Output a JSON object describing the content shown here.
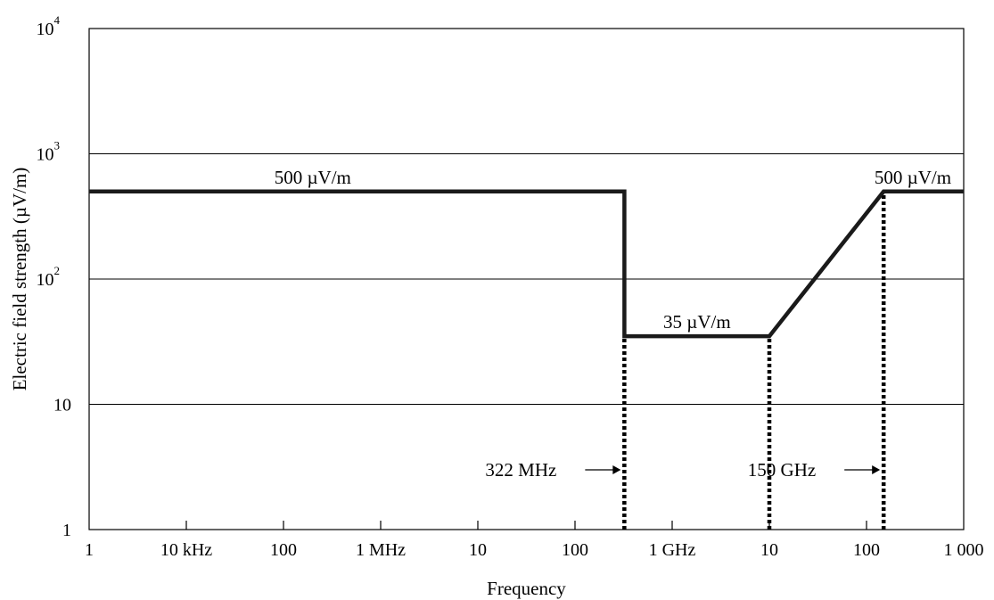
{
  "chart_data": {
    "type": "line",
    "title": "",
    "xlabel": "Frequency",
    "ylabel": "Electric field strength (µV/m)",
    "xscale": "log",
    "yscale": "log",
    "xlim_hz": [
      1000,
      1000000000000
    ],
    "ylim": [
      1,
      10000
    ],
    "grid": "horizontal",
    "x_tick_labels": [
      "1",
      "10 kHz",
      "100",
      "1 MHz",
      "10",
      "100",
      "1 GHz",
      "10",
      "100",
      "1 000"
    ],
    "y_ticks": [
      {
        "value": 1,
        "base": "1",
        "exp": ""
      },
      {
        "value": 10,
        "base": "10",
        "exp": ""
      },
      {
        "value": 100,
        "base": "10",
        "exp": "2"
      },
      {
        "value": 1000,
        "base": "10",
        "exp": "3"
      },
      {
        "value": 10000,
        "base": "10",
        "exp": "4"
      }
    ],
    "series": [
      {
        "points_hz": [
          [
            1000,
            500
          ],
          [
            322000000,
            500
          ],
          [
            322000000,
            35
          ],
          [
            10000000000,
            35
          ],
          [
            150000000000,
            500
          ],
          [
            1000000000000,
            500
          ]
        ]
      }
    ],
    "markers": [
      {
        "label": "322 MHz",
        "x_hz": 322000000,
        "y_top": 35
      },
      {
        "x_hz": 10000000000,
        "y_top": 35
      },
      {
        "label": "150 GHz",
        "x_hz": 150000000000,
        "y_top": 500
      }
    ],
    "annotations": [
      {
        "text": "500 µV/m",
        "x_hz": 200000,
        "y": 500
      },
      {
        "text": "35 µV/m",
        "x_hz": 1800000000,
        "y": 35
      },
      {
        "text": "500 µV/m",
        "x_hz": 300000000000,
        "y": 500
      }
    ]
  }
}
